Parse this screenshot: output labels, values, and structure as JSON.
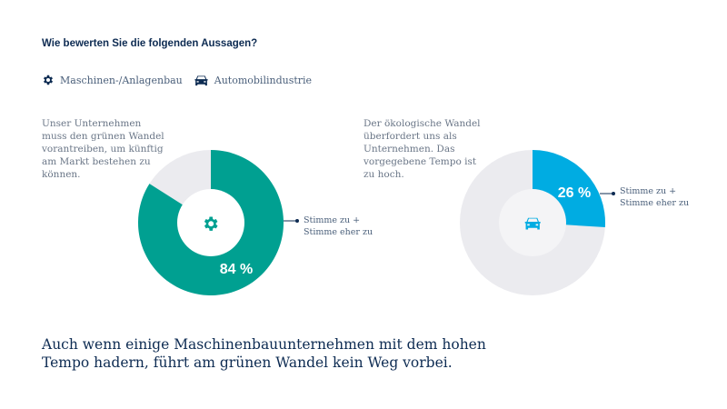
{
  "title": "Wie bewerten Sie die folgenden Aussagen?",
  "legend": [
    {
      "label": "Maschinen-/Anlagenbau",
      "icon": "gear-icon"
    },
    {
      "label": "Automobilindustrie",
      "icon": "car-icon"
    }
  ],
  "colors": {
    "machinery": "#00a091",
    "automotive": "#00ace2",
    "rest": "#ebebef",
    "navy": "#0d2b52"
  },
  "chart_data": [
    {
      "type": "pie",
      "question": [
        "Unser Unternehmen",
        "muss den grünen Wandel",
        "vorantreiben, um künftig",
        "am Markt bestehen zu",
        "können."
      ],
      "segment_label": [
        "Stimme zu +",
        "Stimme eher zu"
      ],
      "value": 84,
      "value_label": "84 %",
      "center_icon": "gear-icon"
    },
    {
      "type": "pie",
      "question": [
        "Der ökologische Wandel",
        "überfordert uns als",
        "Unternehmen. Das",
        "vorgegebene Tempo ist",
        "zu hoch."
      ],
      "segment_label": [
        "Stimme zu +",
        "Stimme eher zu"
      ],
      "value": 26,
      "value_label": "26 %",
      "center_icon": "car-icon"
    }
  ],
  "conclusion": [
    "Auch wenn einige Maschinenbauunternehmen mit dem hohen",
    "Tempo hadern, führt am grünen Wandel kein Weg vorbei."
  ]
}
